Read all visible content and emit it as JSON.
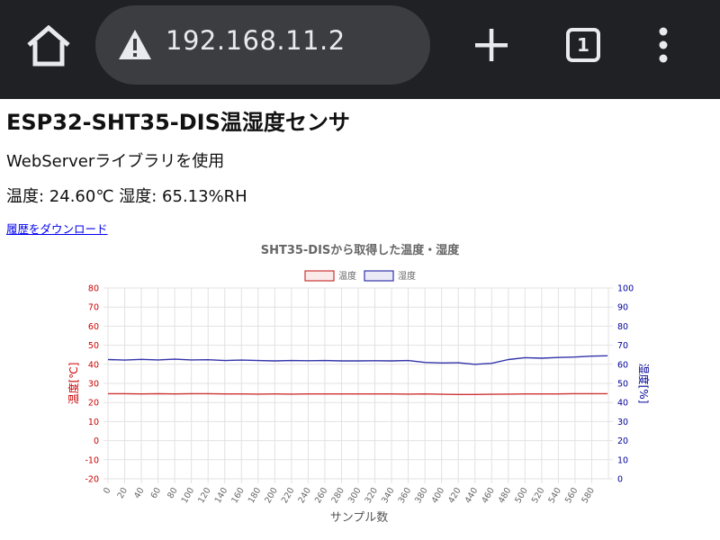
{
  "browser": {
    "url": "192.168.11.2",
    "tab_count": "1",
    "icons": {
      "home": "home-icon",
      "security": "warning-icon",
      "new_tab": "plus-icon",
      "tabs": "tab-switcher-icon",
      "menu": "more-vert-icon"
    }
  },
  "page": {
    "title": "ESP32-SHT35-DIS温湿度センサ",
    "subtitle": "WebServerライブラリを使用",
    "reading": "温度: 24.60℃ 湿度: 65.13%RH",
    "download_link": "履歴をダウンロード"
  },
  "chart_data": {
    "type": "line",
    "title": "SHT35-DISから取得した温度・湿度",
    "xlabel": "サンプル数",
    "x": [
      0,
      20,
      40,
      60,
      80,
      100,
      120,
      140,
      160,
      180,
      200,
      220,
      240,
      260,
      280,
      300,
      320,
      340,
      360,
      380,
      400,
      420,
      440,
      460,
      480,
      500,
      520,
      540,
      560,
      580,
      599
    ],
    "x_ticks": [
      "0",
      "20",
      "40",
      "60",
      "80",
      "100",
      "120",
      "140",
      "160",
      "180",
      "200",
      "220",
      "240",
      "260",
      "280",
      "300",
      "320",
      "340",
      "360",
      "380",
      "400",
      "420",
      "440",
      "460",
      "480",
      "500",
      "520",
      "540",
      "560",
      "580"
    ],
    "y_left": {
      "label": "温度[℃]",
      "range": [
        -20,
        80
      ],
      "ticks": [
        "80",
        "70",
        "60",
        "50",
        "40",
        "30",
        "20",
        "10",
        "0",
        "-10",
        "-20"
      ],
      "color": "#cc0000"
    },
    "y_right": {
      "label": "湿度[%]",
      "range": [
        0,
        100
      ],
      "ticks": [
        "100",
        "90",
        "80",
        "70",
        "60",
        "50",
        "40",
        "30",
        "20",
        "10",
        "0"
      ],
      "color": "#000099"
    },
    "legend_position": "top",
    "grid": true,
    "series": [
      {
        "name": "温度",
        "axis": "left",
        "color": "#cc3333",
        "values": [
          24.6,
          24.6,
          24.5,
          24.6,
          24.5,
          24.6,
          24.6,
          24.5,
          24.5,
          24.4,
          24.5,
          24.4,
          24.5,
          24.5,
          24.5,
          24.5,
          24.5,
          24.5,
          24.4,
          24.5,
          24.3,
          24.2,
          24.2,
          24.3,
          24.4,
          24.5,
          24.5,
          24.5,
          24.6,
          24.6,
          24.6
        ]
      },
      {
        "name": "湿度",
        "axis": "right",
        "color": "#3333aa",
        "values": [
          62.5,
          62.2,
          62.6,
          62.3,
          62.7,
          62.3,
          62.4,
          62.0,
          62.2,
          62.0,
          61.8,
          62.0,
          61.9,
          62.0,
          61.8,
          61.8,
          61.9,
          61.8,
          62.0,
          61.0,
          60.7,
          60.8,
          60.0,
          60.5,
          62.5,
          63.5,
          63.2,
          63.6,
          63.8,
          64.3,
          64.5
        ]
      }
    ]
  }
}
